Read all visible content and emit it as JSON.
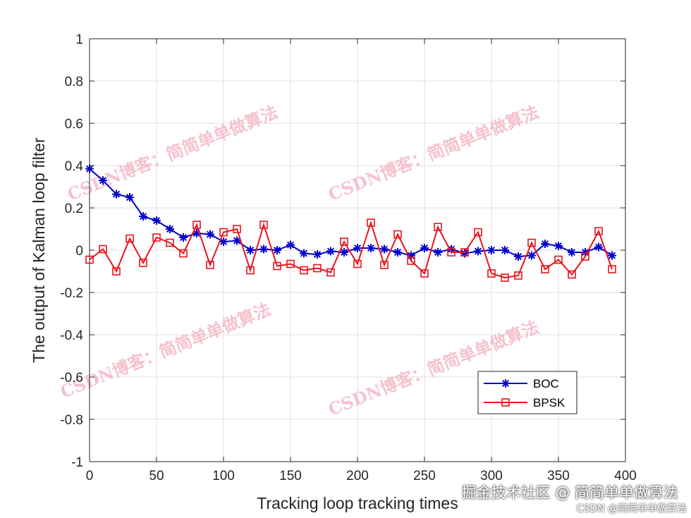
{
  "chart_data": {
    "type": "line",
    "title": "",
    "xlabel": "Tracking loop tracking times",
    "ylabel": "The output of Kalman loop filter",
    "xlim": [
      0,
      400
    ],
    "ylim": [
      -1,
      1
    ],
    "xticks": [
      0,
      50,
      100,
      150,
      200,
      250,
      300,
      350,
      400
    ],
    "yticks": [
      -1,
      -0.8,
      -0.6,
      -0.4,
      -0.2,
      0,
      0.2,
      0.4,
      0.6,
      0.8,
      1
    ],
    "xtick_labels": [
      "0",
      "50",
      "100",
      "150",
      "200",
      "250",
      "300",
      "350",
      "400"
    ],
    "ytick_labels": [
      "-1",
      "-0.8",
      "-0.6",
      "-0.4",
      "-0.2",
      "0",
      "0.2",
      "0.4",
      "0.6",
      "0.8",
      "1"
    ],
    "grid": true,
    "legend_position": "bottom-right",
    "x": [
      0,
      10,
      20,
      30,
      40,
      50,
      60,
      70,
      80,
      90,
      100,
      110,
      120,
      130,
      140,
      150,
      160,
      170,
      180,
      190,
      200,
      210,
      220,
      230,
      240,
      250,
      260,
      270,
      280,
      290,
      300,
      310,
      320,
      330,
      340,
      350,
      360,
      370,
      380,
      390
    ],
    "series": [
      {
        "name": "BOC",
        "color": "#0000cc",
        "marker": "asterisk",
        "values": [
          0.385,
          0.33,
          0.265,
          0.25,
          0.16,
          0.14,
          0.1,
          0.06,
          0.08,
          0.075,
          0.04,
          0.045,
          0.0,
          0.005,
          0.0,
          0.025,
          -0.015,
          -0.02,
          -0.005,
          -0.01,
          0.01,
          0.01,
          0.005,
          -0.01,
          -0.025,
          0.01,
          -0.01,
          0.005,
          -0.015,
          -0.005,
          0.0,
          0.0,
          -0.03,
          -0.025,
          0.03,
          0.02,
          -0.01,
          -0.01,
          0.015,
          -0.025
        ]
      },
      {
        "name": "BPSK",
        "color": "#e8141c",
        "marker": "square",
        "values": [
          -0.045,
          0.005,
          -0.1,
          0.055,
          -0.06,
          0.06,
          0.035,
          -0.015,
          0.12,
          -0.07,
          0.085,
          0.1,
          -0.095,
          0.12,
          -0.075,
          -0.065,
          -0.095,
          -0.085,
          -0.105,
          0.04,
          -0.065,
          0.13,
          -0.07,
          0.075,
          -0.05,
          -0.11,
          0.11,
          -0.01,
          -0.01,
          0.085,
          -0.11,
          -0.13,
          -0.12,
          0.035,
          -0.09,
          -0.045,
          -0.115,
          -0.03,
          0.09,
          -0.09
        ]
      }
    ]
  },
  "watermarks": {
    "blog_text": "CSDN博客：简简单单做算法",
    "footer_line1": "掘金技术社区 @ 简简单单做算法",
    "footer_line2": "CSDN @简简单单做算法"
  }
}
